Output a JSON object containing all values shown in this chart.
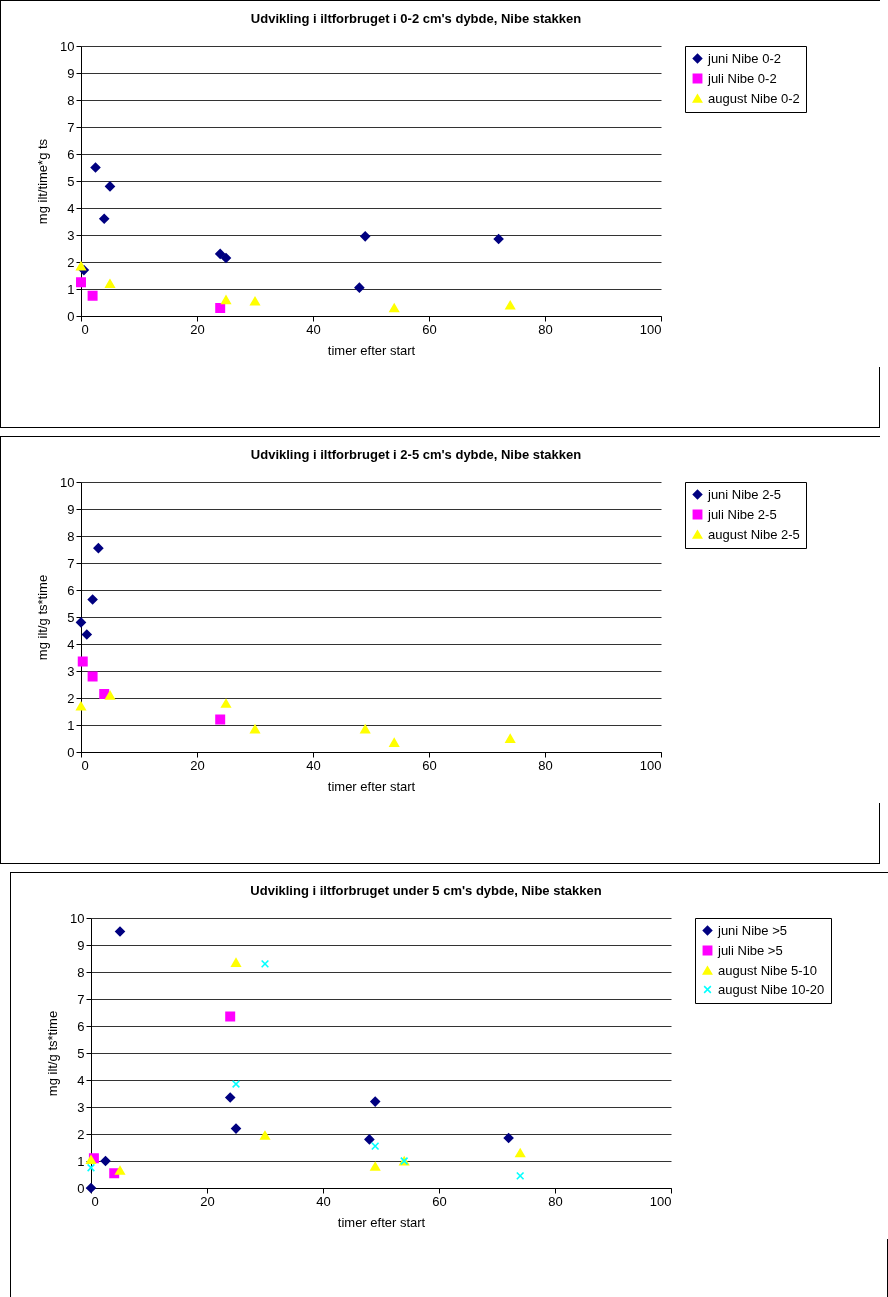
{
  "chart_data": [
    {
      "type": "scatter",
      "title": "Udvikling i iltforbruget i 0-2 cm's dybde, Nibe stakken",
      "xlabel": "timer efter start",
      "ylabel": "mg ilt/time*g ts",
      "xlim": [
        0,
        100
      ],
      "ylim": [
        0,
        10
      ],
      "xticks": [
        0,
        20,
        40,
        60,
        80,
        100
      ],
      "yticks": [
        0,
        1,
        2,
        3,
        4,
        5,
        6,
        7,
        8,
        9,
        10
      ],
      "grid": "y",
      "legend": "right",
      "series": [
        {
          "name": "juni Nibe 0-2",
          "color": "#000080",
          "marker": "diamond",
          "x": [
            2.5,
            5,
            4,
            24,
            25,
            49,
            48,
            72,
            0.5
          ],
          "values": [
            5.5,
            4.8,
            3.6,
            2.3,
            2.15,
            2.95,
            1.05,
            2.85,
            1.7
          ]
        },
        {
          "name": "juli Nibe 0-2",
          "color": "#ff00ff",
          "marker": "square",
          "x": [
            0,
            2,
            24
          ],
          "values": [
            1.25,
            0.75,
            0.3
          ]
        },
        {
          "name": "august Nibe 0-2",
          "color": "#ffff00",
          "marker": "triangle",
          "x": [
            0,
            5,
            25,
            30,
            54,
            74
          ],
          "values": [
            1.85,
            1.2,
            0.6,
            0.55,
            0.3,
            0.4
          ]
        }
      ]
    },
    {
      "type": "scatter",
      "title": "Udvikling i iltforbruget i 2-5 cm's dybde, Nibe stakken",
      "xlabel": "timer efter start",
      "ylabel": "mg ilt/g ts*time",
      "xlim": [
        0,
        100
      ],
      "ylim": [
        0,
        10
      ],
      "xticks": [
        0,
        20,
        40,
        60,
        80,
        100
      ],
      "yticks": [
        0,
        1,
        2,
        3,
        4,
        5,
        6,
        7,
        8,
        9,
        10
      ],
      "grid": "y",
      "legend": "right",
      "series": [
        {
          "name": "juni Nibe 2-5",
          "color": "#000080",
          "marker": "diamond",
          "x": [
            3,
            2,
            0,
            1
          ],
          "values": [
            7.55,
            5.65,
            4.8,
            4.35
          ]
        },
        {
          "name": "juli Nibe 2-5",
          "color": "#ff00ff",
          "marker": "square",
          "x": [
            0.3,
            2,
            4,
            24
          ],
          "values": [
            3.35,
            2.8,
            2.15,
            1.2
          ]
        },
        {
          "name": "august Nibe 2-5",
          "color": "#ffff00",
          "marker": "triangle",
          "x": [
            0,
            5,
            25,
            30,
            49,
            54,
            74
          ],
          "values": [
            1.7,
            2.1,
            1.8,
            0.85,
            0.85,
            0.35,
            0.5
          ]
        }
      ]
    },
    {
      "type": "scatter",
      "title": "Udvikling i iltforbruget under 5 cm's dybde, Nibe stakken",
      "xlabel": "timer efter start",
      "ylabel": "mg ilt/g ts*time",
      "xlim": [
        0,
        100
      ],
      "ylim": [
        0,
        10
      ],
      "xticks": [
        0,
        20,
        40,
        60,
        80,
        100
      ],
      "yticks": [
        0,
        1,
        2,
        3,
        4,
        5,
        6,
        7,
        8,
        9,
        10
      ],
      "grid": "y",
      "legend": "right",
      "series": [
        {
          "name": "juni Nibe >5",
          "color": "#000080",
          "marker": "diamond",
          "x": [
            5,
            0,
            2.5,
            24,
            25,
            49,
            48,
            72
          ],
          "values": [
            9.5,
            0,
            1,
            3.35,
            2.2,
            3.2,
            1.8,
            1.85
          ]
        },
        {
          "name": "juli Nibe >5",
          "color": "#ff00ff",
          "marker": "square",
          "x": [
            0.5,
            4,
            24
          ],
          "values": [
            1.1,
            0.55,
            6.35
          ]
        },
        {
          "name": "august Nibe 5-10",
          "color": "#ffff00",
          "marker": "triangle",
          "x": [
            0,
            5,
            25,
            30,
            49,
            54,
            74
          ],
          "values": [
            1.05,
            0.65,
            8.35,
            1.95,
            0.8,
            1,
            1.3
          ]
        },
        {
          "name": "august Nibe 10-20",
          "color": "#00ffff",
          "marker": "cross",
          "x": [
            0,
            30,
            25,
            49,
            54,
            74
          ],
          "values": [
            0.75,
            8.3,
            3.85,
            1.55,
            1,
            0.45
          ]
        }
      ]
    }
  ]
}
